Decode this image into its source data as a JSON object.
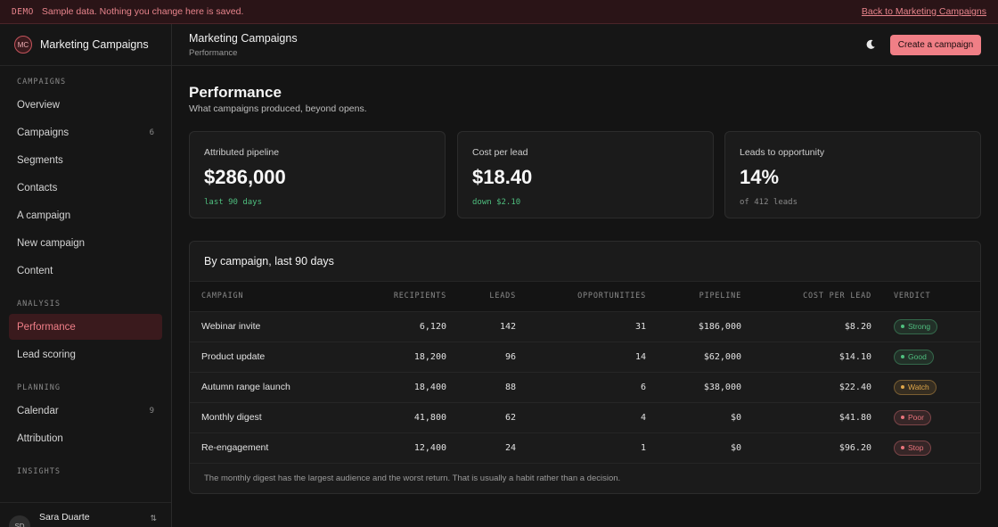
{
  "banner": {
    "tag": "DEMO",
    "message": "Sample data. Nothing you change here is saved.",
    "back_link": "Back to Marketing Campaigns"
  },
  "sidebar": {
    "logo": "MC",
    "app_name": "Marketing Campaigns",
    "sections": [
      {
        "heading": "CAMPAIGNS",
        "items": [
          {
            "label": "Overview",
            "count": ""
          },
          {
            "label": "Campaigns",
            "count": "6"
          },
          {
            "label": "Segments",
            "count": ""
          },
          {
            "label": "Contacts",
            "count": ""
          },
          {
            "label": "A campaign",
            "count": ""
          },
          {
            "label": "New campaign",
            "count": ""
          },
          {
            "label": "Content",
            "count": ""
          }
        ]
      },
      {
        "heading": "ANALYSIS",
        "items": [
          {
            "label": "Performance",
            "count": "",
            "active": true
          },
          {
            "label": "Lead scoring",
            "count": ""
          }
        ]
      },
      {
        "heading": "PLANNING",
        "items": [
          {
            "label": "Calendar",
            "count": "9"
          },
          {
            "label": "Attribution",
            "count": ""
          }
        ]
      },
      {
        "heading": "INSIGHTS",
        "items": []
      }
    ],
    "user": {
      "initials": "SD",
      "name": "Sara Duarte"
    }
  },
  "header": {
    "title": "Marketing Campaigns",
    "subtitle": "Performance",
    "theme_icon": "moon-icon",
    "create_label": "Create a campaign"
  },
  "page": {
    "title": "Performance",
    "subtitle": "What campaigns produced, beyond opens."
  },
  "metrics": [
    {
      "label": "Attributed pipeline",
      "value": "$286,000",
      "note": "last 90 days",
      "tone": "green"
    },
    {
      "label": "Cost per lead",
      "value": "$18.40",
      "note": "down $2.10",
      "tone": "green"
    },
    {
      "label": "Leads to opportunity",
      "value": "14%",
      "note": "of 412 leads",
      "tone": "grey"
    }
  ],
  "table": {
    "title": "By campaign, last 90 days",
    "columns": [
      "CAMPAIGN",
      "RECIPIENTS",
      "LEADS",
      "OPPORTUNITIES",
      "PIPELINE",
      "COST PER LEAD",
      "VERDICT"
    ],
    "rows": [
      {
        "campaign": "Webinar invite",
        "recipients": "6,120",
        "leads": "142",
        "opportunities": "31",
        "pipeline": "$186,000",
        "cpl": "$8.20",
        "verdict": "Strong",
        "verdict_color": "#4fbf7f"
      },
      {
        "campaign": "Product update",
        "recipients": "18,200",
        "leads": "96",
        "opportunities": "14",
        "pipeline": "$62,000",
        "cpl": "$14.10",
        "verdict": "Good",
        "verdict_color": "#4fbf7f"
      },
      {
        "campaign": "Autumn range launch",
        "recipients": "18,400",
        "leads": "88",
        "opportunities": "6",
        "pipeline": "$38,000",
        "cpl": "$22.40",
        "verdict": "Watch",
        "verdict_color": "#e0a84a"
      },
      {
        "campaign": "Monthly digest",
        "recipients": "41,800",
        "leads": "62",
        "opportunities": "4",
        "pipeline": "$0",
        "cpl": "$41.80",
        "verdict": "Poor",
        "verdict_color": "#e8737b"
      },
      {
        "campaign": "Re-engagement",
        "recipients": "12,400",
        "leads": "24",
        "opportunities": "1",
        "pipeline": "$0",
        "cpl": "$96.20",
        "verdict": "Stop",
        "verdict_color": "#e8737b"
      }
    ],
    "footnote": "The monthly digest has the largest audience and the worst return. That is usually a habit rather than a decision."
  }
}
